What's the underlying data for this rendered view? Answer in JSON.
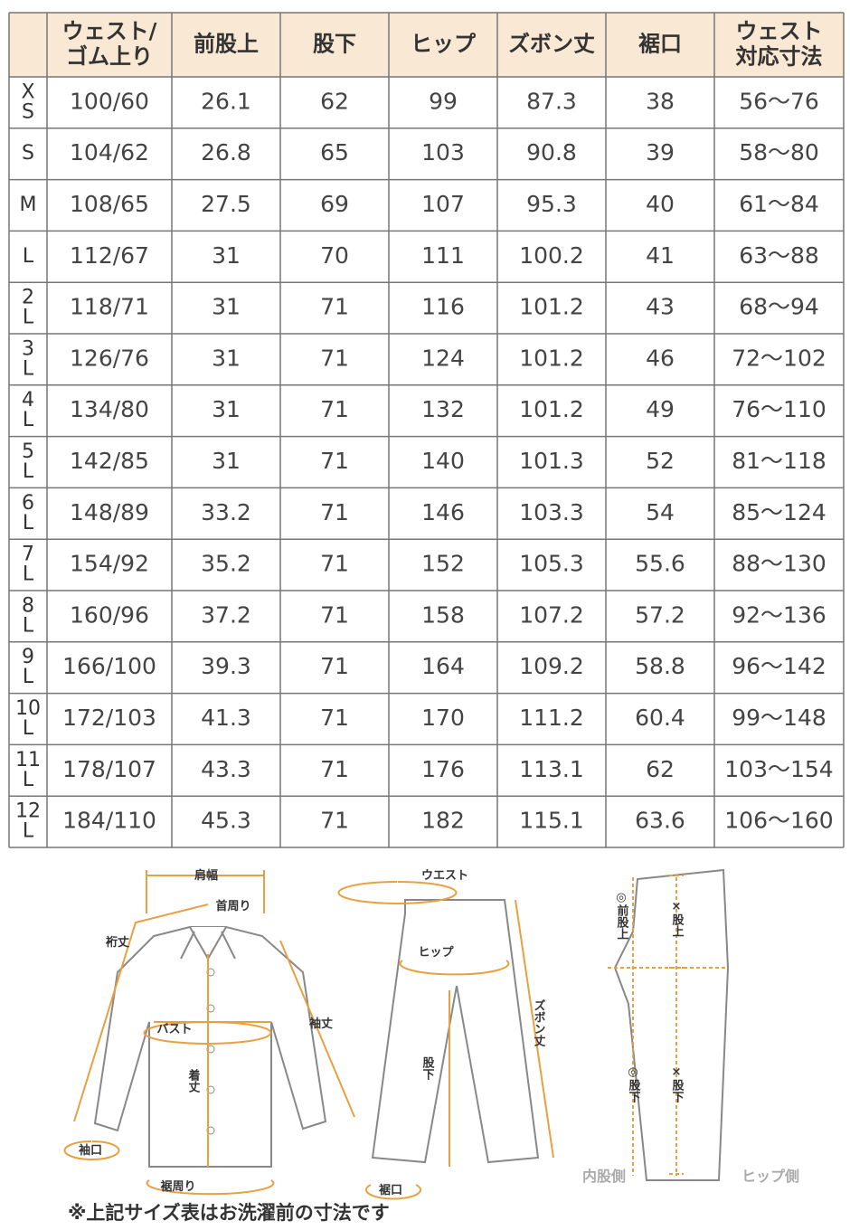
{
  "table": {
    "header": [
      [],
      [
        "ウェスト/",
        "ゴム上り"
      ],
      [
        "前股上"
      ],
      [
        "股下"
      ],
      [
        "ヒップ"
      ],
      [
        "ズボン丈"
      ],
      [
        "裾口"
      ],
      [
        "ウェスト",
        "対応寸法"
      ]
    ],
    "rows": [
      {
        "size": [
          "X",
          "S"
        ],
        "cells": [
          "100/60",
          "26.1",
          "62",
          "99",
          "87.3",
          "38",
          "56～76"
        ]
      },
      {
        "size": [
          "S"
        ],
        "cells": [
          "104/62",
          "26.8",
          "65",
          "103",
          "90.8",
          "39",
          "58～80"
        ]
      },
      {
        "size": [
          "M"
        ],
        "cells": [
          "108/65",
          "27.5",
          "69",
          "107",
          "95.3",
          "40",
          "61～84"
        ]
      },
      {
        "size": [
          "L"
        ],
        "cells": [
          "112/67",
          "31",
          "70",
          "111",
          "100.2",
          "41",
          "63～88"
        ]
      },
      {
        "size": [
          "2",
          "L"
        ],
        "cells": [
          "118/71",
          "31",
          "71",
          "116",
          "101.2",
          "43",
          "68～94"
        ]
      },
      {
        "size": [
          "3",
          "L"
        ],
        "cells": [
          "126/76",
          "31",
          "71",
          "124",
          "101.2",
          "46",
          "72～102"
        ]
      },
      {
        "size": [
          "4",
          "L"
        ],
        "cells": [
          "134/80",
          "31",
          "71",
          "132",
          "101.2",
          "49",
          "76～110"
        ]
      },
      {
        "size": [
          "5",
          "L"
        ],
        "cells": [
          "142/85",
          "31",
          "71",
          "140",
          "101.3",
          "52",
          "81～118"
        ]
      },
      {
        "size": [
          "6",
          "L"
        ],
        "cells": [
          "148/89",
          "33.2",
          "71",
          "146",
          "103.3",
          "54",
          "85～124"
        ]
      },
      {
        "size": [
          "7",
          "L"
        ],
        "cells": [
          "154/92",
          "35.2",
          "71",
          "152",
          "105.3",
          "55.6",
          "88～130"
        ]
      },
      {
        "size": [
          "8",
          "L"
        ],
        "cells": [
          "160/96",
          "37.2",
          "71",
          "158",
          "107.2",
          "57.2",
          "92～136"
        ]
      },
      {
        "size": [
          "9",
          "L"
        ],
        "cells": [
          "166/100",
          "39.3",
          "71",
          "164",
          "109.2",
          "58.8",
          "96～142"
        ]
      },
      {
        "size": [
          "10",
          "L"
        ],
        "cells": [
          "172/103",
          "41.3",
          "71",
          "170",
          "111.2",
          "60.4",
          "99～148"
        ]
      },
      {
        "size": [
          "11",
          "L"
        ],
        "cells": [
          "178/107",
          "43.3",
          "71",
          "176",
          "113.1",
          "62",
          "103～154"
        ]
      },
      {
        "size": [
          "12",
          "L"
        ],
        "cells": [
          "184/110",
          "45.3",
          "71",
          "182",
          "115.1",
          "63.6",
          "106～160"
        ]
      }
    ]
  },
  "diagram": {
    "shirt": {
      "shoulder": "肩幅",
      "neck": "首周り",
      "yuki": "裄丈",
      "sleeve": "袖丈",
      "bust": "バスト",
      "length": "着丈",
      "cuff": "袖口",
      "hem": "裾周り"
    },
    "pants": {
      "waist": "ウエスト",
      "hip": "ヒップ",
      "inseam": "股下",
      "length": "ズボン丈",
      "hem": "裾口"
    },
    "side": {
      "front_rise": "◎前股上",
      "rise": "×股上",
      "inseam_a": "◎股下",
      "inseam_b": "×股下",
      "inner": "内股側",
      "hip_side": "ヒップ側"
    }
  },
  "note": "※上記サイズ表はお洗濯前の寸法です"
}
